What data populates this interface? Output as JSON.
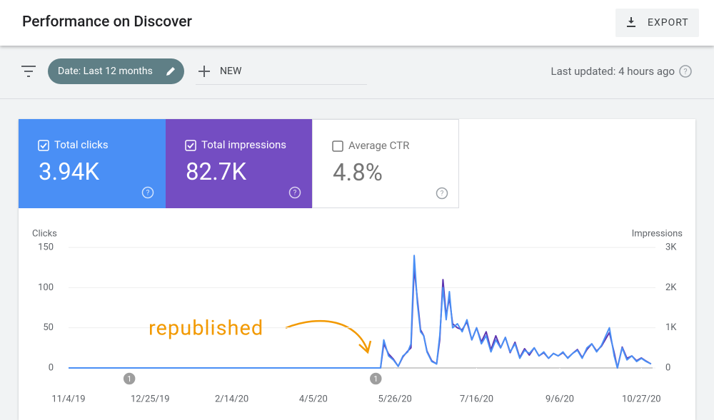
{
  "header": {
    "title": "Performance on Discover",
    "export": "EXPORT"
  },
  "toolbar": {
    "date_chip": "Date: Last 12 months",
    "new": "NEW",
    "last_updated": "Last updated: 4 hours ago"
  },
  "metrics": [
    {
      "label": "Total clicks",
      "value": "3.94K",
      "checked": true,
      "color": "#4a8ff5"
    },
    {
      "label": "Total impressions",
      "value": "82.7K",
      "checked": true,
      "color": "#744dc2"
    },
    {
      "label": "Average CTR",
      "value": "4.8%",
      "checked": false,
      "color": "#ffffff"
    }
  ],
  "chart_data": {
    "type": "line",
    "y_label": "Clicks",
    "y2_label": "Impressions",
    "x": [
      "11/4/19",
      "5/17/20",
      "5/19/20",
      "5/22/20",
      "5/25/20",
      "5/28/20",
      "5/31/20",
      "6/3/20",
      "6/5/20",
      "6/7/20",
      "6/9/20",
      "6/11/20",
      "6/13/20",
      "6/15/20",
      "6/18/20",
      "6/21/20",
      "6/23/20",
      "6/25/20",
      "6/27/20",
      "6/29/20",
      "7/1/20",
      "7/4/20",
      "7/7/20",
      "7/10/20",
      "7/13/20",
      "7/16/20",
      "7/19/20",
      "7/22/20",
      "7/25/20",
      "7/28/20",
      "7/31/20",
      "8/3/20",
      "8/6/20",
      "8/9/20",
      "8/12/20",
      "8/15/20",
      "8/18/20",
      "8/21/20",
      "8/24/20",
      "8/27/20",
      "8/30/20",
      "9/2/20",
      "9/5/20",
      "9/8/20",
      "9/11/20",
      "9/14/20",
      "9/17/20",
      "9/20/20",
      "9/23/20",
      "9/26/20",
      "9/29/20",
      "10/2/20",
      "10/7/20",
      "10/10/20",
      "10/12/20",
      "10/15/20",
      "10/18/20",
      "10/21/20",
      "10/24/20",
      "10/27/20",
      "10/30/20",
      "11/2/20"
    ],
    "series": [
      {
        "name": "Impressions",
        "axis": "y2",
        "color": "#5e35b1",
        "values": [
          0,
          0,
          600,
          350,
          220,
          40,
          280,
          420,
          500,
          2500,
          1700,
          950,
          800,
          420,
          180,
          100,
          700,
          2200,
          1300,
          1750,
          1100,
          1000,
          950,
          1150,
          700,
          1000,
          650,
          900,
          450,
          800,
          500,
          760,
          380,
          640,
          260,
          480,
          320,
          500,
          300,
          380,
          240,
          360,
          300,
          380,
          250,
          360,
          460,
          260,
          460,
          600,
          420,
          540,
          880,
          380,
          0,
          520,
          240,
          300,
          180,
          250,
          170,
          100
        ]
      },
      {
        "name": "Clicks",
        "color": "#4a8ff5",
        "values": [
          0,
          0,
          35,
          15,
          10,
          2,
          15,
          20,
          30,
          140,
          80,
          45,
          40,
          20,
          8,
          5,
          40,
          100,
          60,
          95,
          50,
          55,
          45,
          60,
          35,
          50,
          30,
          40,
          20,
          35,
          25,
          38,
          20,
          30,
          12,
          22,
          18,
          25,
          15,
          20,
          12,
          18,
          15,
          20,
          12,
          18,
          22,
          12,
          25,
          30,
          20,
          28,
          50,
          15,
          0,
          25,
          10,
          15,
          8,
          12,
          8,
          5
        ]
      }
    ],
    "xlim": [
      "11/4/19",
      "11/3/20"
    ],
    "xticks": [
      "11/4/19",
      "12/25/19",
      "2/14/20",
      "4/5/20",
      "5/26/20",
      "7/16/20",
      "9/6/20",
      "10/27/20"
    ],
    "ylim": [
      0,
      150
    ],
    "yticks": [
      0,
      50,
      100,
      150
    ],
    "y2lim": [
      0,
      3000
    ],
    "y2ticks": [
      0,
      {
        "value": 1000,
        "label": "1K"
      },
      {
        "value": 2000,
        "label": "2K"
      },
      {
        "value": 3000,
        "label": "3K"
      }
    ],
    "grid": true,
    "markers": [
      {
        "label": "1",
        "x": "12/12/19"
      },
      {
        "label": "1",
        "x": "5/14/20"
      }
    ],
    "note": "republished"
  }
}
